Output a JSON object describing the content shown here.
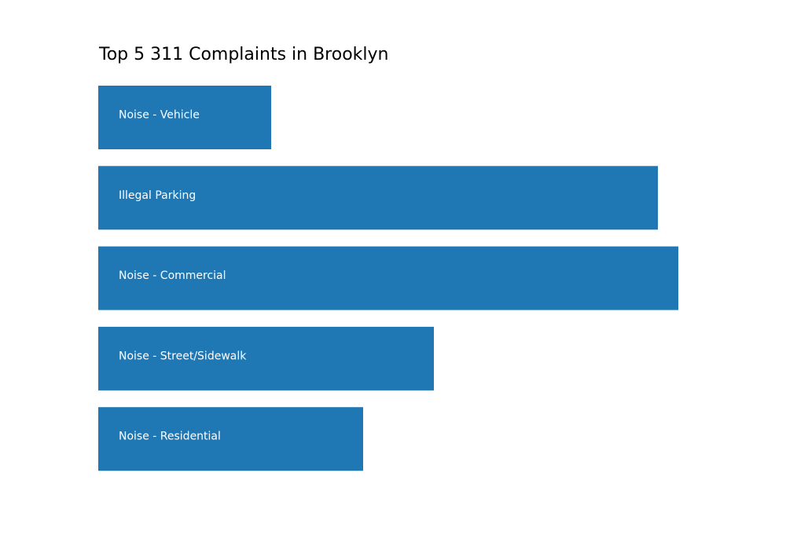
{
  "chart_data": {
    "type": "bar",
    "orientation": "horizontal",
    "title": "Top 5 311 Complaints in Brooklyn",
    "xlabel": "",
    "ylabel": "",
    "categories": [
      "Noise - Vehicle",
      "Illegal Parking",
      "Noise - Commercial",
      "Noise - Street/Sidewalk",
      "Noise - Residential"
    ],
    "values": [
      220,
      712,
      738,
      427,
      337
    ],
    "xlim": [
      0,
      875
    ],
    "grid": false,
    "axes_visible": false,
    "labels_inside_bars": true
  },
  "colors": {
    "bar": "#1f77b4",
    "bar_label": "#ffffff",
    "title": "#000000",
    "background": "#ffffff"
  }
}
